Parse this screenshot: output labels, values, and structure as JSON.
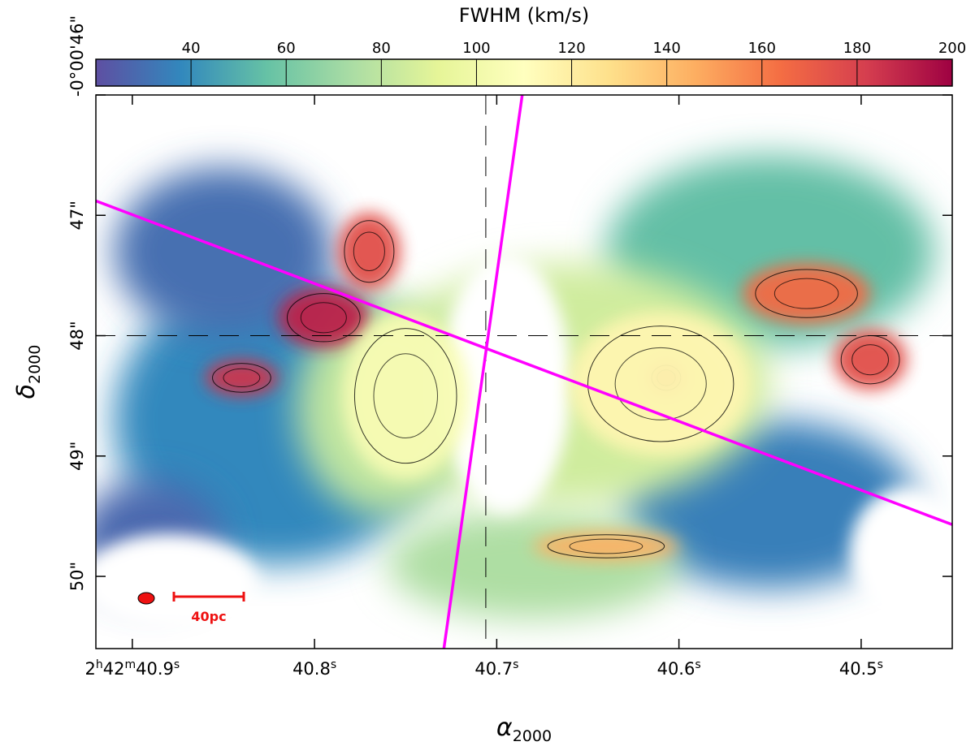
{
  "chart_data": {
    "type": "heatmap",
    "colorbar": {
      "label": "FWHM (km/s)",
      "range": [
        20,
        200
      ],
      "ticks": [
        40,
        60,
        80,
        100,
        120,
        140,
        160,
        180,
        200
      ],
      "tick_labels": [
        "40",
        "60",
        "80",
        "100",
        "120",
        "140",
        "160",
        "180",
        "200"
      ],
      "colormap": "Spectral_r",
      "colors": [
        "#5e4fa2",
        "#3288bd",
        "#66c2a5",
        "#abdda4",
        "#e6f598",
        "#ffffbf",
        "#fee08b",
        "#fdae61",
        "#f46d43",
        "#d53e4f",
        "#9e0142"
      ]
    },
    "xaxis": {
      "label_base": "α",
      "label_sub": "2000",
      "range_s": [
        40.92,
        40.45
      ],
      "ticks": [
        {
          "value": 40.9,
          "pre": "2",
          "h": "h",
          "mid": "42",
          "m": "m",
          "num": "40.9",
          "s": "s"
        },
        {
          "value": 40.8,
          "pre": "",
          "h": "",
          "mid": "",
          "m": "",
          "num": "40.8",
          "s": "s"
        },
        {
          "value": 40.7,
          "pre": "",
          "h": "",
          "mid": "",
          "m": "",
          "num": "40.7",
          "s": "s"
        },
        {
          "value": 40.6,
          "pre": "",
          "h": "",
          "mid": "",
          "m": "",
          "num": "40.6",
          "s": "s"
        },
        {
          "value": 40.5,
          "pre": "",
          "h": "",
          "mid": "",
          "m": "",
          "num": "40.5",
          "s": "s"
        }
      ]
    },
    "yaxis": {
      "label_base": "δ",
      "label_sub": "2000",
      "range_arcsec": [
        46.0,
        50.6
      ],
      "ticks": [
        {
          "value": 46.0,
          "label": "-0°00'46\""
        },
        {
          "value": 47.0,
          "label": "47\""
        },
        {
          "value": 48.0,
          "label": "48\""
        },
        {
          "value": 49.0,
          "label": "49\""
        },
        {
          "value": 50.0,
          "label": "50\""
        }
      ]
    },
    "center": {
      "ra_s": 40.706,
      "dec_arcsec": 48.0
    },
    "lines": [
      {
        "name": "major-axis",
        "color": "#ff00ff",
        "from": [
          40.92,
          46.88
        ],
        "to": [
          40.45,
          49.57
        ]
      },
      {
        "name": "minor-axis",
        "color": "#ff00ff",
        "from": [
          40.686,
          46.0
        ],
        "to": [
          40.729,
          50.6
        ]
      }
    ],
    "scale_bar": {
      "label": "40pc",
      "color": "#ee1111"
    },
    "beam": {
      "color": "#ee1111"
    },
    "regions": [
      {
        "name": "nw-ridge",
        "ra_s": 40.77,
        "dec_arcsec": 47.3,
        "fwhm": 175,
        "r_ra": 0.017,
        "r_dec": 0.32
      },
      {
        "name": "nw-knot",
        "ra_s": 40.795,
        "dec_arcsec": 47.85,
        "fwhm": 190,
        "r_ra": 0.025,
        "r_dec": 0.25
      },
      {
        "name": "w-knot",
        "ra_s": 40.84,
        "dec_arcsec": 48.35,
        "fwhm": 185,
        "r_ra": 0.02,
        "r_dec": 0.15
      },
      {
        "name": "e-knot",
        "ra_s": 40.607,
        "dec_arcsec": 48.35,
        "fwhm": 180,
        "r_ra": 0.01,
        "r_dec": 0.13
      },
      {
        "name": "ne-filament",
        "ra_s": 40.53,
        "dec_arcsec": 47.65,
        "fwhm": 165,
        "r_ra": 0.035,
        "r_dec": 0.25
      },
      {
        "name": "e-filament",
        "ra_s": 40.495,
        "dec_arcsec": 48.2,
        "fwhm": 175,
        "r_ra": 0.02,
        "r_dec": 0.25
      },
      {
        "name": "s-arc",
        "ra_s": 40.64,
        "dec_arcsec": 49.75,
        "fwhm": 145,
        "r_ra": 0.04,
        "r_dec": 0.12
      },
      {
        "name": "ring-east",
        "ra_s": 40.61,
        "dec_arcsec": 48.4,
        "fwhm": 115,
        "r_ra": 0.05,
        "r_dec": 0.6
      },
      {
        "name": "ring-west",
        "ra_s": 40.75,
        "dec_arcsec": 48.5,
        "fwhm": 105,
        "r_ra": 0.035,
        "r_dec": 0.7
      }
    ]
  }
}
